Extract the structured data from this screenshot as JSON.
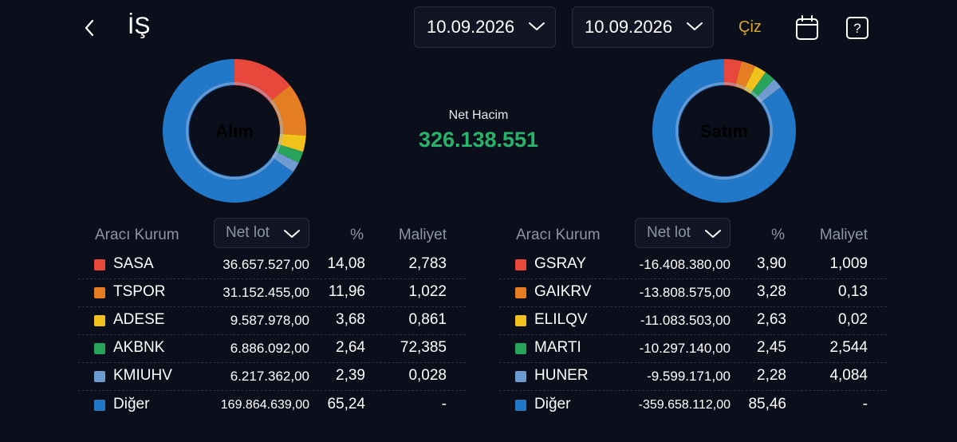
{
  "header": {
    "title": "İŞ",
    "start_date": "10.09.2026",
    "end_date": "10.09.2026",
    "draw_label": "Çiz",
    "icons": [
      "back-chevron-icon",
      "chevron-down-icon",
      "calendar-icon",
      "help-icon"
    ]
  },
  "summary": {
    "buy_label": "Alım",
    "sell_label": "Satım",
    "net_volume_label": "Net Hacim",
    "net_volume_value": "326.138.551"
  },
  "colors": {
    "red": "#e8473c",
    "orange": "#e57d22",
    "yellow": "#f1c21b",
    "green": "#27a35b",
    "light_blue": "#6f9bd1",
    "blue": "#2177c8",
    "accent_gold": "#d7a531",
    "net_green": "#27b46a"
  },
  "chart_data": [
    {
      "type": "pie",
      "title": "Alım",
      "categories": [
        "SASA",
        "TSPOR",
        "ADESE",
        "AKBNK",
        "KMIUHV",
        "Diğer"
      ],
      "values": [
        14.08,
        11.96,
        3.68,
        2.64,
        2.39,
        65.24
      ],
      "colors": [
        "#e8473c",
        "#e57d22",
        "#f1c21b",
        "#27a35b",
        "#6f9bd1",
        "#2177c8"
      ]
    },
    {
      "type": "pie",
      "title": "Satım",
      "categories": [
        "GSRAY",
        "GAIKRV",
        "ELILQV",
        "MARTI",
        "HUNER",
        "Diğer"
      ],
      "values": [
        3.9,
        3.28,
        2.63,
        2.45,
        2.28,
        85.46
      ],
      "colors": [
        "#e8473c",
        "#e57d22",
        "#f1c21b",
        "#27a35b",
        "#6f9bd1",
        "#2177c8"
      ]
    }
  ],
  "buy_table": {
    "headers": {
      "broker": "Aracı Kurum",
      "lot_select": "Net lot",
      "pct": "%",
      "cost": "Maliyet"
    },
    "rows": [
      {
        "name": "SASA",
        "lot": "36.657.527,00",
        "pct": "14,08",
        "cost": "2,783",
        "color": "#e8473c"
      },
      {
        "name": "TSPOR",
        "lot": "31.152.455,00",
        "pct": "11,96",
        "cost": "1,022",
        "color": "#e57d22"
      },
      {
        "name": "ADESE",
        "lot": "9.587.978,00",
        "pct": "3,68",
        "cost": "0,861",
        "color": "#f1c21b"
      },
      {
        "name": "AKBNK",
        "lot": "6.886.092,00",
        "pct": "2,64",
        "cost": "72,385",
        "color": "#27a35b"
      },
      {
        "name": "KMIUHV",
        "lot": "6.217.362,00",
        "pct": "2,39",
        "cost": "0,028",
        "color": "#6f9bd1"
      },
      {
        "name": "Diğer",
        "lot": "169.864.639,00",
        "pct": "65,24",
        "cost": "-",
        "color": "#2177c8"
      }
    ]
  },
  "sell_table": {
    "headers": {
      "broker": "Aracı Kurum",
      "lot_select": "Net lot",
      "pct": "%",
      "cost": "Maliyet"
    },
    "rows": [
      {
        "name": "GSRAY",
        "lot": "-16.408.380,00",
        "pct": "3,90",
        "cost": "1,009",
        "color": "#e8473c"
      },
      {
        "name": "GAIKRV",
        "lot": "-13.808.575,00",
        "pct": "3,28",
        "cost": "0,13",
        "color": "#e57d22"
      },
      {
        "name": "ELILQV",
        "lot": "-11.083.503,00",
        "pct": "2,63",
        "cost": "0,02",
        "color": "#f1c21b"
      },
      {
        "name": "MARTI",
        "lot": "-10.297.140,00",
        "pct": "2,45",
        "cost": "2,544",
        "color": "#27a35b"
      },
      {
        "name": "HUNER",
        "lot": "-9.599.171,00",
        "pct": "2,28",
        "cost": "4,084",
        "color": "#6f9bd1"
      },
      {
        "name": "Diğer",
        "lot": "-359.658.112,00",
        "pct": "85,46",
        "cost": "-",
        "color": "#2177c8"
      }
    ]
  }
}
